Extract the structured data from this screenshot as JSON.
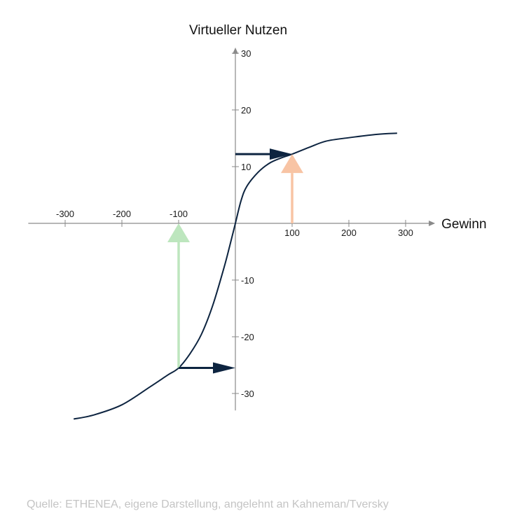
{
  "chart_data": {
    "type": "line",
    "xlabel": "Gewinn",
    "ylabel": "Virtueller Nutzen",
    "xlim": [
      -365,
      352
    ],
    "ylim": [
      -33,
      31
    ],
    "x_ticks": [
      -300,
      -200,
      -100,
      100,
      200,
      300
    ],
    "x_tick_labels": [
      "-300",
      "-200",
      "-100",
      "100",
      "200",
      "300"
    ],
    "y_ticks": [
      30,
      20,
      10,
      -10,
      -20,
      -30
    ],
    "y_tick_labels": [
      "30",
      "20",
      "10",
      "-10",
      "-20",
      "-30"
    ],
    "series": [
      {
        "x": [
          -285,
          -250,
          -200,
          -150,
          -120,
          -100,
          -80,
          -60,
          -40,
          -20,
          -10,
          0,
          10,
          20,
          40,
          60,
          80,
          100,
          130,
          160,
          200,
          250,
          285
        ],
        "y": [
          -34.5,
          -33.8,
          -32,
          -28.8,
          -26.8,
          -25.5,
          -23,
          -19.6,
          -14.5,
          -7.8,
          -4,
          0,
          4,
          6.5,
          9,
          10.6,
          11.5,
          12.2,
          13.4,
          14.5,
          15.1,
          15.7,
          15.9
        ],
        "color": "#0d2440"
      }
    ],
    "annotations": [
      {
        "type": "arrow",
        "from": [
          0,
          12.2
        ],
        "to": [
          100,
          12.2
        ],
        "color": "#0d2440"
      },
      {
        "type": "arrow",
        "from": [
          100,
          0
        ],
        "to": [
          100,
          12.2
        ],
        "color": "#f8c4a4"
      },
      {
        "type": "arrow",
        "from": [
          -100,
          -25.5
        ],
        "to": [
          -100,
          0
        ],
        "color": "#bde6be"
      },
      {
        "type": "arrow",
        "from": [
          -100,
          -25.5
        ],
        "to": [
          0,
          -25.5
        ],
        "color": "#0d2440"
      }
    ],
    "grid": false,
    "axis_color": "#8a8a8a"
  },
  "source": "Quelle: ETHENEA, eigene Darstellung, angelehnt an Kahneman/Tversky"
}
